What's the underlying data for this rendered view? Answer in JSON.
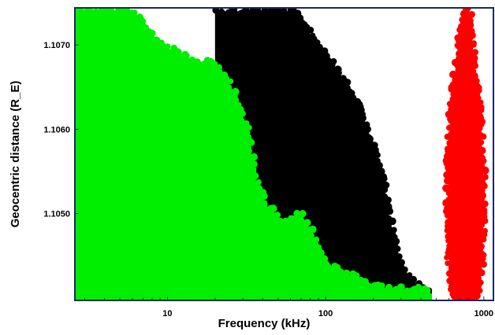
{
  "chart_data": {
    "type": "scatter",
    "title": "",
    "xlabel": "Frequency (kHz)",
    "ylabel": "Geocentric distance (R_E)",
    "x_scale": "log",
    "xlim": [
      2.6,
      1150
    ],
    "ylim": [
      1.10397,
      1.10744
    ],
    "x_ticks": [
      10,
      100,
      1000
    ],
    "x_tick_labels": [
      "10",
      "100",
      "1000"
    ],
    "y_ticks": [
      1.105,
      1.106,
      1.107
    ],
    "y_tick_labels": [
      "1.1050",
      "1.1060",
      "1.1070"
    ],
    "grid": false,
    "legend": "none",
    "series": [
      {
        "color": "#000000",
        "profile": [
          [
            20,
            1.1074
          ],
          [
            30,
            1.1074
          ],
          [
            40,
            1.1074
          ],
          [
            55,
            1.1074
          ],
          [
            65,
            1.1074
          ],
          [
            75,
            1.1072
          ],
          [
            90,
            1.107
          ],
          [
            110,
            1.1068
          ],
          [
            140,
            1.1065
          ],
          [
            170,
            1.1062
          ],
          [
            200,
            1.1058
          ],
          [
            230,
            1.1054
          ],
          [
            250,
            1.105
          ],
          [
            280,
            1.1046
          ],
          [
            320,
            1.1043
          ],
          [
            360,
            1.1042
          ],
          [
            420,
            1.1041
          ],
          [
            470,
            1.1041
          ]
        ]
      },
      {
        "color": "#00ee00",
        "profile": [
          [
            2.6,
            1.1074
          ],
          [
            4,
            1.1074
          ],
          [
            6,
            1.1074
          ],
          [
            7,
            1.1073
          ],
          [
            9,
            1.107
          ],
          [
            12,
            1.1069
          ],
          [
            15,
            1.1068
          ],
          [
            19,
            1.1068
          ],
          [
            24,
            1.1066
          ],
          [
            28,
            1.1063
          ],
          [
            32,
            1.106
          ],
          [
            36,
            1.1054
          ],
          [
            42,
            1.1051
          ],
          [
            55,
            1.1049
          ],
          [
            70,
            1.105
          ],
          [
            85,
            1.1047
          ],
          [
            100,
            1.1044
          ],
          [
            130,
            1.1043
          ],
          [
            170,
            1.1042
          ],
          [
            260,
            1.1041
          ],
          [
            400,
            1.1041
          ],
          [
            470,
            1.10405
          ]
        ]
      },
      {
        "color": "#ff0000",
        "profile": [
          [
            650,
            1.10397
          ],
          [
            630,
            1.1041
          ],
          [
            600,
            1.1045
          ],
          [
            590,
            1.105
          ],
          [
            595,
            1.1055
          ],
          [
            610,
            1.106
          ],
          [
            640,
            1.1065
          ],
          [
            690,
            1.107
          ],
          [
            750,
            1.10744
          ],
          [
            800,
            1.10744
          ],
          [
            830,
            1.1072
          ],
          [
            870,
            1.1068
          ],
          [
            920,
            1.1064
          ],
          [
            960,
            1.106
          ],
          [
            990,
            1.1055
          ],
          [
            1000,
            1.105
          ],
          [
            980,
            1.1045
          ],
          [
            930,
            1.1041
          ],
          [
            880,
            1.10397
          ]
        ]
      }
    ]
  }
}
